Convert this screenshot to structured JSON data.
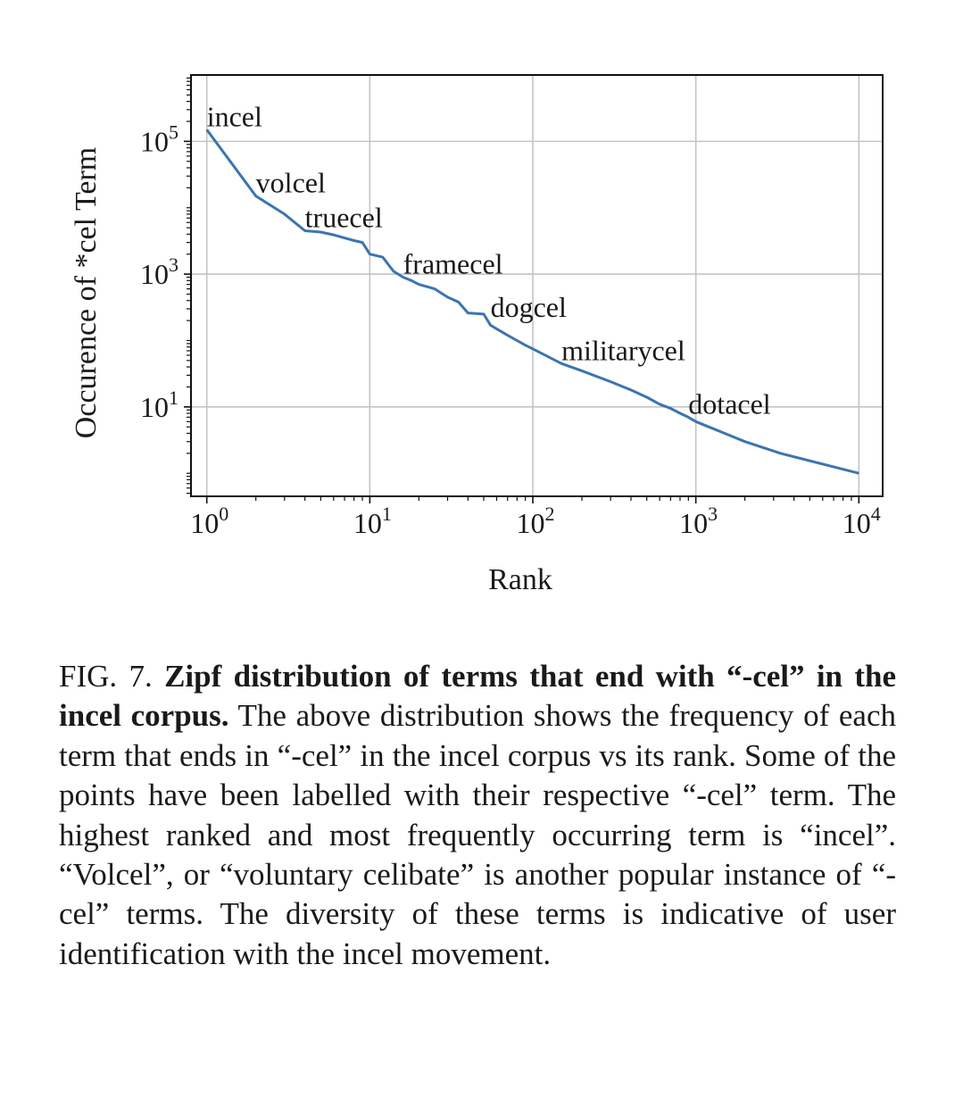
{
  "chart_data": {
    "type": "line",
    "xlabel": "Rank",
    "ylabel": "Occurence of *cel Term",
    "x_scale": "log",
    "y_scale": "log",
    "xlim": [
      0.8,
      14000
    ],
    "ylim": [
      0.45,
      1000000
    ],
    "grid": true,
    "x_ticks": [
      {
        "value": 1,
        "base": "10",
        "exp": "0"
      },
      {
        "value": 10,
        "base": "10",
        "exp": "1"
      },
      {
        "value": 100,
        "base": "10",
        "exp": "2"
      },
      {
        "value": 1000,
        "base": "10",
        "exp": "3"
      },
      {
        "value": 10000,
        "base": "10",
        "exp": "4"
      }
    ],
    "y_ticks": [
      {
        "value": 10,
        "base": "10",
        "exp": "1"
      },
      {
        "value": 1000,
        "base": "10",
        "exp": "3"
      },
      {
        "value": 100000,
        "base": "10",
        "exp": "5"
      }
    ],
    "series": [
      {
        "color": "#3b75af",
        "x": [
          1,
          2,
          3,
          4,
          5,
          6,
          7,
          8,
          9,
          10,
          12,
          14,
          16,
          18,
          20,
          25,
          30,
          35,
          40,
          50,
          55,
          60,
          70,
          80,
          90,
          100,
          150,
          200,
          300,
          400,
          500,
          600,
          700,
          800,
          900,
          1000,
          1200,
          1500,
          2000,
          3300,
          10000
        ],
        "y": [
          150000,
          15000,
          8000,
          4500,
          4300,
          3900,
          3500,
          3200,
          3000,
          2000,
          1800,
          1100,
          900,
          800,
          700,
          600,
          450,
          380,
          260,
          250,
          170,
          150,
          120,
          100,
          85,
          75,
          45,
          35,
          24,
          18,
          14,
          11,
          9.5,
          8,
          7,
          6,
          5,
          4,
          3,
          2,
          1
        ],
        "labels": [
          {
            "text": "incel",
            "x": 1,
            "y": 150000
          },
          {
            "text": "volcel",
            "x": 2,
            "y": 15000
          },
          {
            "text": "truecel",
            "x": 4,
            "y": 4500
          },
          {
            "text": "framecel",
            "x": 16,
            "y": 900
          },
          {
            "text": "dogcel",
            "x": 55,
            "y": 200
          },
          {
            "text": "militarycel",
            "x": 150,
            "y": 45
          },
          {
            "text": "dotacel",
            "x": 900,
            "y": 7
          }
        ]
      }
    ]
  },
  "caption": {
    "fig_label": "FIG. 7.",
    "bold_title": "Zipf distribution of terms that end with “-cel” in the incel corpus.",
    "body": "The above distribution shows the frequency of each term that ends in “-cel” in the incel corpus vs its rank. Some of the points have been labelled with their respective “-cel” term. The highest ranked and most frequently occurring term is “incel”. “Volcel”, or “voluntary celibate” is another popular instance of “-cel” terms. The diversity of these terms is indicative of user identification with the incel movement."
  }
}
